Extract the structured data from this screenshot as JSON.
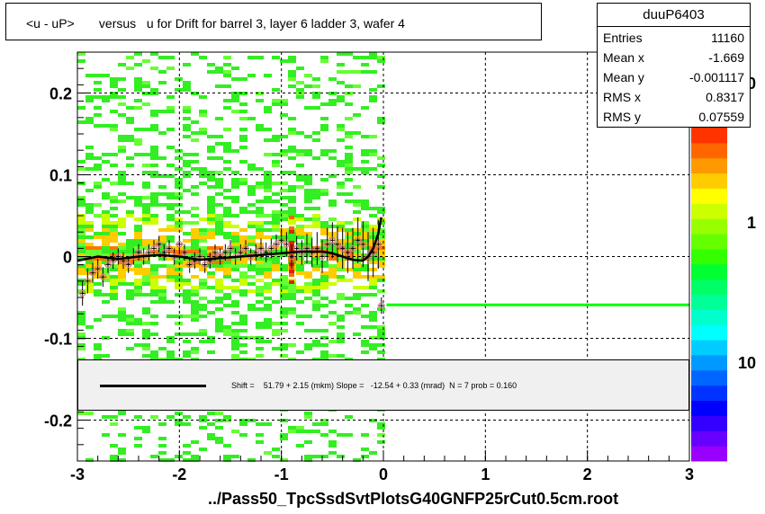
{
  "chart_data": {
    "type": "heatmap",
    "title": "<u - uP>       versus   u for Drift for barrel 3, layer 6 ladder 3, wafer 4",
    "xlabel": "../Pass50_TpcSsdSvtPlotsG40GNFP25rCut0.5cm.root",
    "ylabel": "",
    "xlim": [
      -3,
      3
    ],
    "ylim": [
      -0.25,
      0.25
    ],
    "x_ticks": [
      "-3",
      "-2",
      "-1",
      "0",
      "1",
      "2",
      "3"
    ],
    "y_ticks": [
      "-0.2",
      "-0.1",
      "0",
      "0.1",
      "0.2"
    ],
    "grid": true,
    "colorbar_labels": [
      "0",
      "1",
      "10"
    ],
    "colors": {
      "accent": "#00ff00",
      "fit": "#000000",
      "marker": "#d88080",
      "legend_bg": "#f0f0f0"
    },
    "profile_points": {
      "x": [
        -2.95,
        -2.9,
        -2.85,
        -2.8,
        -2.75,
        -2.7,
        -2.65,
        -2.6,
        -2.55,
        -2.5,
        -2.45,
        -2.4,
        -2.35,
        -2.3,
        -2.25,
        -2.2,
        -2.15,
        -2.1,
        -2.05,
        -2.0,
        -1.95,
        -1.9,
        -1.85,
        -1.8,
        -1.75,
        -1.7,
        -1.65,
        -1.6,
        -1.55,
        -1.5,
        -1.45,
        -1.4,
        -1.35,
        -1.3,
        -1.25,
        -1.2,
        -1.15,
        -1.1,
        -1.05,
        -1.0,
        -0.95,
        -0.9,
        -0.85,
        -0.8,
        -0.75,
        -0.7,
        -0.65,
        -0.6,
        -0.55,
        -0.5,
        -0.45,
        -0.4,
        -0.35,
        -0.3,
        -0.25,
        -0.2,
        -0.15,
        -0.1,
        -0.05,
        -0.02
      ],
      "y": [
        -0.045,
        -0.03,
        -0.02,
        -0.015,
        -0.025,
        -0.01,
        -0.005,
        0.0,
        -0.005,
        -0.01,
        0.0,
        0.005,
        0.0,
        0.005,
        0.01,
        0.015,
        0.005,
        0.01,
        0.0,
        0.015,
        0.005,
        -0.01,
        -0.005,
        0.0,
        -0.01,
        -0.005,
        0.005,
        0.0,
        0.005,
        0.01,
        0.0,
        0.005,
        0.01,
        0.0,
        0.005,
        0.01,
        0.005,
        0.01,
        0.015,
        0.02,
        0.015,
        0.0,
        0.01,
        0.005,
        0.01,
        0.005,
        0.01,
        0.0,
        0.015,
        0.02,
        0.015,
        0.01,
        0.005,
        0.01,
        0.02,
        0.015,
        0.0,
        0.005,
        0.015,
        -0.06
      ],
      "errors": [
        0.015,
        0.015,
        0.012,
        0.012,
        0.012,
        0.01,
        0.01,
        0.01,
        0.01,
        0.01,
        0.01,
        0.01,
        0.01,
        0.01,
        0.01,
        0.01,
        0.01,
        0.01,
        0.01,
        0.01,
        0.01,
        0.01,
        0.01,
        0.01,
        0.01,
        0.01,
        0.01,
        0.01,
        0.01,
        0.01,
        0.01,
        0.01,
        0.01,
        0.01,
        0.01,
        0.012,
        0.012,
        0.012,
        0.012,
        0.015,
        0.015,
        0.015,
        0.015,
        0.015,
        0.018,
        0.018,
        0.02,
        0.02,
        0.02,
        0.022,
        0.022,
        0.025,
        0.025,
        0.025,
        0.028,
        0.028,
        0.03,
        0.03,
        0.03,
        0.01
      ]
    },
    "fit_curve": {
      "x": [
        -3.0,
        -2.8,
        -2.6,
        -2.4,
        -2.2,
        -2.0,
        -1.8,
        -1.6,
        -1.4,
        -1.2,
        -1.0,
        -0.8,
        -0.6,
        -0.5,
        -0.4,
        -0.3,
        -0.2,
        -0.15,
        -0.1,
        -0.05,
        -0.02
      ],
      "y": [
        -0.005,
        0.0,
        -0.003,
        0.0,
        0.002,
        0.0,
        -0.004,
        -0.002,
        0.0,
        0.002,
        0.004,
        0.006,
        0.006,
        0.004,
        0.0,
        -0.004,
        -0.005,
        0.0,
        0.01,
        0.028,
        0.048
      ]
    },
    "green_line": {
      "x": [
        0.03,
        3.0
      ],
      "y": -0.059
    }
  },
  "stats": {
    "name": "duuP6403",
    "rows": [
      {
        "key": "Entries",
        "value": "11160"
      },
      {
        "key": "Mean x",
        "value": "-1.669"
      },
      {
        "key": "Mean y",
        "value": "-0.001117"
      },
      {
        "key": "RMS x",
        "value": "0.8317"
      },
      {
        "key": "RMS y",
        "value": "0.07559"
      }
    ]
  },
  "legend": {
    "text": "Shift =    51.79 + 2.15 (mkm) Slope =   -12.54 + 0.33 (mrad)  N = 7 prob = 0.160"
  }
}
